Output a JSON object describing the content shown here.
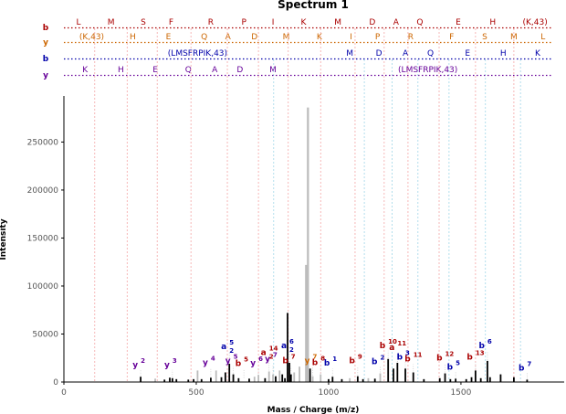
{
  "chart_data": {
    "type": "bar",
    "title": "Spectrum 1",
    "xlabel": "Mass / Charge (m/z)",
    "ylabel": "Intensity",
    "xlim": [
      0,
      1890
    ],
    "ylim": [
      0,
      298000
    ],
    "xticks": [
      "0",
      "500",
      "1000",
      "1500"
    ],
    "yticks": [
      "0",
      "50000",
      "100000",
      "150000",
      "200000",
      "250000"
    ],
    "colors": {
      "b": "#aa0000",
      "y": "#cc6600",
      "b2": "#0000aa",
      "y2": "#660099",
      "peak": "#000000",
      "gray": "#bbbbbb"
    },
    "sequence_rows": [
      {
        "label": "b",
        "color": "#aa0000",
        "items": [
          {
            "text": "L",
            "mz": 55
          },
          {
            "text": "M",
            "mz": 178
          },
          {
            "text": "S",
            "mz": 300
          },
          {
            "text": "F",
            "mz": 405
          },
          {
            "text": "R",
            "mz": 555
          },
          {
            "text": "P",
            "mz": 680
          },
          {
            "text": "I",
            "mz": 790
          },
          {
            "text": "K",
            "mz": 905
          },
          {
            "text": "M",
            "mz": 1035
          },
          {
            "text": "D",
            "mz": 1165
          },
          {
            "text": "A",
            "mz": 1255
          },
          {
            "text": "Q",
            "mz": 1345
          },
          {
            "text": "E",
            "mz": 1490
          },
          {
            "text": "H",
            "mz": 1620
          },
          {
            "text": "(K,43)",
            "mz": 1780
          }
        ]
      },
      {
        "label": "y",
        "color": "#cc6600",
        "items": [
          {
            "text": "(K,43)",
            "mz": 105
          },
          {
            "text": "H",
            "mz": 260
          },
          {
            "text": "E",
            "mz": 395
          },
          {
            "text": "Q",
            "mz": 530
          },
          {
            "text": "A",
            "mz": 620
          },
          {
            "text": "D",
            "mz": 720
          },
          {
            "text": "M",
            "mz": 840
          },
          {
            "text": "K",
            "mz": 965
          },
          {
            "text": "I",
            "mz": 1085
          },
          {
            "text": "P",
            "mz": 1185
          },
          {
            "text": "R",
            "mz": 1310
          },
          {
            "text": "F",
            "mz": 1465
          },
          {
            "text": "S",
            "mz": 1590
          },
          {
            "text": "M",
            "mz": 1700
          },
          {
            "text": "L",
            "mz": 1810
          }
        ]
      },
      {
        "label": "b",
        "color": "#0000aa",
        "items": [
          {
            "text": "(LMSFRPIK,43)",
            "mz": 505
          },
          {
            "text": "M",
            "mz": 1080
          },
          {
            "text": "D",
            "mz": 1190
          },
          {
            "text": "A",
            "mz": 1290
          },
          {
            "text": "Q",
            "mz": 1385
          },
          {
            "text": "E",
            "mz": 1525
          },
          {
            "text": "H",
            "mz": 1660
          },
          {
            "text": "K",
            "mz": 1790
          }
        ]
      },
      {
        "label": "y",
        "color": "#660099",
        "items": [
          {
            "text": "K",
            "mz": 80
          },
          {
            "text": "H",
            "mz": 215
          },
          {
            "text": "E",
            "mz": 345
          },
          {
            "text": "Q",
            "mz": 470
          },
          {
            "text": "A",
            "mz": 570
          },
          {
            "text": "D",
            "mz": 665
          },
          {
            "text": "M",
            "mz": 790
          },
          {
            "text": "(LMSFRPIK,43)",
            "mz": 1375
          }
        ]
      }
    ],
    "peaks": [
      {
        "mz": 290,
        "value": 5500,
        "gray": false
      },
      {
        "mz": 345,
        "value": 3500,
        "gray": true
      },
      {
        "mz": 380,
        "value": 2500,
        "gray": false
      },
      {
        "mz": 400,
        "value": 4500,
        "gray": false
      },
      {
        "mz": 410,
        "value": 4000,
        "gray": false
      },
      {
        "mz": 425,
        "value": 3000,
        "gray": false
      },
      {
        "mz": 470,
        "value": 2500,
        "gray": false
      },
      {
        "mz": 490,
        "value": 3000,
        "gray": false
      },
      {
        "mz": 505,
        "value": 12000,
        "gray": true
      },
      {
        "mz": 520,
        "value": 3000,
        "gray": false
      },
      {
        "mz": 555,
        "value": 4500,
        "gray": false
      },
      {
        "mz": 575,
        "value": 12000,
        "gray": true
      },
      {
        "mz": 595,
        "value": 5000,
        "gray": false
      },
      {
        "mz": 610,
        "value": 10000,
        "gray": false
      },
      {
        "mz": 625,
        "value": 19000,
        "gray": false
      },
      {
        "mz": 640,
        "value": 8000,
        "gray": false
      },
      {
        "mz": 660,
        "value": 4000,
        "gray": false
      },
      {
        "mz": 700,
        "value": 3500,
        "gray": false
      },
      {
        "mz": 720,
        "value": 5500,
        "gray": true
      },
      {
        "mz": 735,
        "value": 7500,
        "gray": true
      },
      {
        "mz": 760,
        "value": 4000,
        "gray": false
      },
      {
        "mz": 775,
        "value": 11000,
        "gray": true
      },
      {
        "mz": 790,
        "value": 8000,
        "gray": true
      },
      {
        "mz": 800,
        "value": 6000,
        "gray": false
      },
      {
        "mz": 815,
        "value": 12000,
        "gray": true
      },
      {
        "mz": 825,
        "value": 8000,
        "gray": false
      },
      {
        "mz": 835,
        "value": 4000,
        "gray": false
      },
      {
        "mz": 845,
        "value": 72000,
        "gray": false
      },
      {
        "mz": 852,
        "value": 20000,
        "gray": false
      },
      {
        "mz": 858,
        "value": 8000,
        "gray": false
      },
      {
        "mz": 870,
        "value": 10000,
        "gray": true
      },
      {
        "mz": 890,
        "value": 16000,
        "gray": true
      },
      {
        "mz": 915,
        "value": 122000,
        "gray": true
      },
      {
        "mz": 922,
        "value": 286000,
        "gray": true
      },
      {
        "mz": 930,
        "value": 14000,
        "gray": false
      },
      {
        "mz": 940,
        "value": 6000,
        "gray": true
      },
      {
        "mz": 970,
        "value": 8000,
        "gray": true
      },
      {
        "mz": 1000,
        "value": 3000,
        "gray": false
      },
      {
        "mz": 1015,
        "value": 5500,
        "gray": false
      },
      {
        "mz": 1050,
        "value": 3000,
        "gray": false
      },
      {
        "mz": 1080,
        "value": 4000,
        "gray": true
      },
      {
        "mz": 1110,
        "value": 6000,
        "gray": false
      },
      {
        "mz": 1130,
        "value": 3000,
        "gray": false
      },
      {
        "mz": 1150,
        "value": 4000,
        "gray": true
      },
      {
        "mz": 1175,
        "value": 3500,
        "gray": false
      },
      {
        "mz": 1195,
        "value": 9000,
        "gray": true
      },
      {
        "mz": 1225,
        "value": 24000,
        "gray": false
      },
      {
        "mz": 1245,
        "value": 14000,
        "gray": false
      },
      {
        "mz": 1260,
        "value": 20000,
        "gray": false
      },
      {
        "mz": 1290,
        "value": 14000,
        "gray": false
      },
      {
        "mz": 1320,
        "value": 10000,
        "gray": false
      },
      {
        "mz": 1360,
        "value": 3000,
        "gray": false
      },
      {
        "mz": 1420,
        "value": 4000,
        "gray": false
      },
      {
        "mz": 1440,
        "value": 9000,
        "gray": false
      },
      {
        "mz": 1460,
        "value": 3000,
        "gray": false
      },
      {
        "mz": 1480,
        "value": 3500,
        "gray": false
      },
      {
        "mz": 1520,
        "value": 3000,
        "gray": false
      },
      {
        "mz": 1540,
        "value": 5000,
        "gray": false
      },
      {
        "mz": 1555,
        "value": 12000,
        "gray": false
      },
      {
        "mz": 1575,
        "value": 4000,
        "gray": false
      },
      {
        "mz": 1600,
        "value": 22000,
        "gray": false
      },
      {
        "mz": 1610,
        "value": 5000,
        "gray": false
      },
      {
        "mz": 1650,
        "value": 8000,
        "gray": false
      },
      {
        "mz": 1700,
        "value": 5000,
        "gray": false
      },
      {
        "mz": 1750,
        "value": 2500,
        "gray": false
      }
    ],
    "annotations": [
      {
        "ion": "y",
        "num": "2",
        "mz": 290,
        "value": 5500,
        "color": "#660099"
      },
      {
        "ion": "y",
        "num": "3",
        "mz": 410,
        "value": 4000,
        "color": "#660099"
      },
      {
        "ion": "y",
        "num": "4",
        "mz": 555,
        "value": 4500,
        "color": "#660099"
      },
      {
        "ion": "a",
        "num": "5",
        "sub": "2",
        "mz": 625,
        "value": 19000,
        "color": "#0000aa"
      },
      {
        "ion": "y",
        "num": "5",
        "mz": 640,
        "value": 8000,
        "color": "#660099"
      },
      {
        "ion": "b",
        "num": "5",
        "mz": 680,
        "value": 3500,
        "color": "#aa0000"
      },
      {
        "ion": "y",
        "num": "6",
        "mz": 735,
        "value": 7500,
        "color": "#660099"
      },
      {
        "ion": "a",
        "num": "14",
        "sub": "2",
        "mz": 775,
        "value": 11000,
        "color": "#aa0000"
      },
      {
        "ion": "y",
        "num": "7",
        "mz": 790,
        "value": 8000,
        "color": "#660099"
      },
      {
        "ion": "a",
        "num": "6",
        "sub": "2",
        "mz": 852,
        "value": 20000,
        "color": "#0000aa"
      },
      {
        "ion": "b",
        "num": "7",
        "mz": 858,
        "value": 8000,
        "color": "#aa0000"
      },
      {
        "ion": "y",
        "num": "7",
        "mz": 940,
        "value": 6000,
        "color": "#cc6600"
      },
      {
        "ion": "b",
        "num": "8",
        "mz": 970,
        "value": 8000,
        "color": "#aa0000"
      },
      {
        "ion": "b",
        "num": "1",
        "mz": 1015,
        "value": 5500,
        "color": "#0000aa"
      },
      {
        "ion": "b",
        "num": "9",
        "mz": 1110,
        "value": 6000,
        "color": "#aa0000"
      },
      {
        "ion": "b",
        "num": "2",
        "mz": 1195,
        "value": 9000,
        "color": "#0000aa"
      },
      {
        "ion": "b",
        "num": "10",
        "mz": 1225,
        "value": 24000,
        "color": "#aa0000"
      },
      {
        "ion": "a",
        "num": "11",
        "mz": 1260,
        "value": 20000,
        "color": "#aa0000"
      },
      {
        "ion": "b",
        "num": "3",
        "mz": 1290,
        "value": 14000,
        "color": "#0000aa"
      },
      {
        "ion": "b",
        "num": "11",
        "mz": 1320,
        "value": 10000,
        "color": "#aa0000"
      },
      {
        "ion": "b",
        "num": "12",
        "mz": 1440,
        "value": 9000,
        "color": "#aa0000"
      },
      {
        "ion": "b",
        "num": "5",
        "mz": 1480,
        "value": 3500,
        "color": "#0000aa"
      },
      {
        "ion": "b",
        "num": "13",
        "mz": 1555,
        "value": 12000,
        "color": "#aa0000"
      },
      {
        "ion": "b",
        "num": "6",
        "mz": 1600,
        "value": 22000,
        "color": "#0000aa"
      },
      {
        "ion": "b",
        "num": "7",
        "mz": 1750,
        "value": 2500,
        "color": "#0000aa"
      }
    ]
  }
}
